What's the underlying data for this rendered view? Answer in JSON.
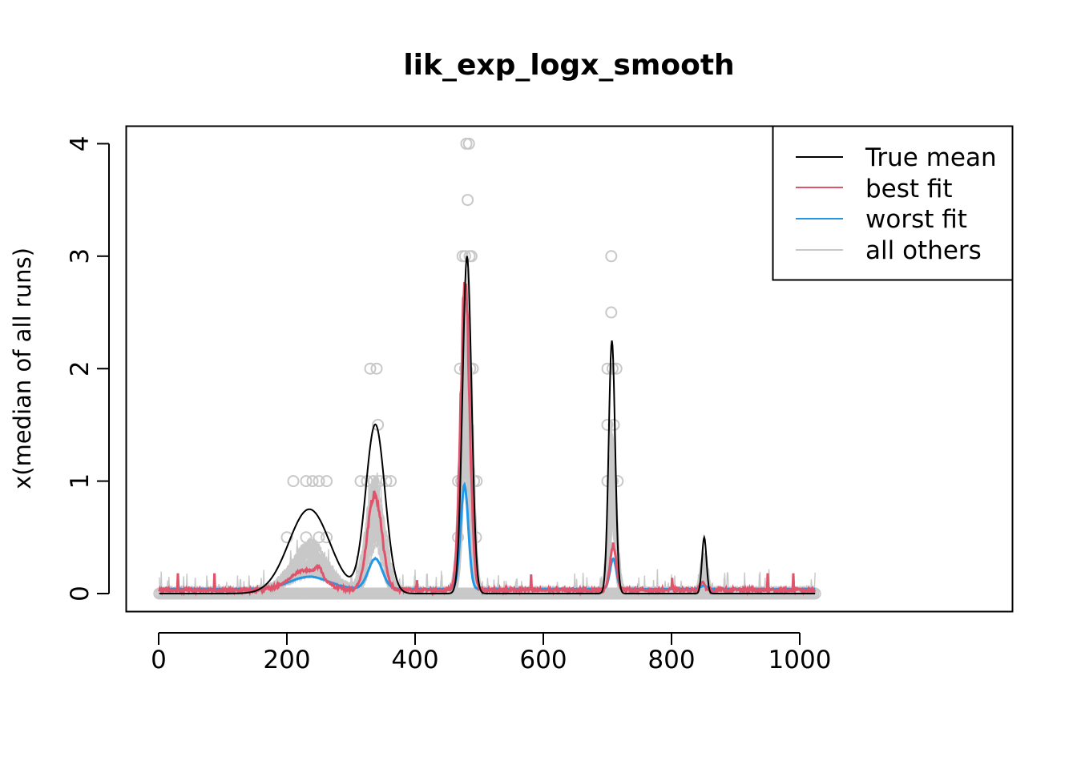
{
  "chart_data": {
    "type": "line",
    "title": "lik_exp_logx_smooth",
    "xlabel": "",
    "ylabel": "x(median of all runs)",
    "xlim": [
      -20,
      1085
    ],
    "ylim": [
      -0.16,
      4.16
    ],
    "xticks": [
      0,
      200,
      400,
      600,
      800,
      1000
    ],
    "yticks": [
      0,
      1,
      2,
      3,
      4
    ],
    "x_tick_labels": [
      "0",
      "200",
      "400",
      "600",
      "800",
      "1000"
    ],
    "y_tick_labels": [
      "0",
      "1",
      "2",
      "3",
      "4"
    ],
    "grid": false,
    "legend_position": "top-right",
    "colors": {
      "true_mean": "#000000",
      "best_fit": "#DF536B",
      "worst_fit": "#2297E6",
      "all_others": "#C8C8C8",
      "points": "#C8C8C8"
    },
    "true_mean": {
      "name": "True mean",
      "baseline": 0,
      "bumps": [
        {
          "center": 235,
          "height": 0.75,
          "width": 32
        },
        {
          "center": 338,
          "height": 1.5,
          "width": 15
        },
        {
          "center": 481,
          "height": 3.0,
          "width": 7
        },
        {
          "center": 707,
          "height": 2.25,
          "width": 5
        },
        {
          "center": 851,
          "height": 0.5,
          "width": 3.5
        }
      ]
    },
    "best_fit": {
      "name": "best fit",
      "baseline": 0.03,
      "bumps": [
        {
          "center": 230,
          "height": 0.18,
          "width": 25
        },
        {
          "center": 250,
          "height": 0.08,
          "width": 5
        },
        {
          "center": 337,
          "height": 0.85,
          "width": 11
        },
        {
          "center": 478,
          "height": 2.72,
          "width": 7
        },
        {
          "center": 709,
          "height": 0.4,
          "width": 5
        },
        {
          "center": 848,
          "height": 0.07,
          "width": 4
        }
      ],
      "spikes": [
        {
          "x": 30,
          "height": 0.18
        },
        {
          "x": 87,
          "height": 0.18
        },
        {
          "x": 403,
          "height": 0.12
        },
        {
          "x": 581,
          "height": 0.17
        },
        {
          "x": 801,
          "height": 0.14
        },
        {
          "x": 950,
          "height": 0.18
        },
        {
          "x": 990,
          "height": 0.18
        }
      ]
    },
    "worst_fit": {
      "name": "worst fit",
      "baseline": 0.04,
      "bumps": [
        {
          "center": 235,
          "height": 0.11,
          "width": 30
        },
        {
          "center": 338,
          "height": 0.27,
          "width": 11
        },
        {
          "center": 477,
          "height": 0.92,
          "width": 6
        },
        {
          "center": 709,
          "height": 0.27,
          "width": 5
        },
        {
          "center": 850,
          "height": 0.03,
          "width": 5
        }
      ]
    },
    "all_others": {
      "name": "all others",
      "count": 40,
      "baseline": 0.02,
      "bumps": [
        {
          "center": 235,
          "height_range": [
            0.12,
            0.45
          ],
          "width": 28
        },
        {
          "center": 338,
          "height_range": [
            0.45,
            0.95
          ],
          "width": 12
        },
        {
          "center": 480,
          "height_range": [
            1.0,
            2.6
          ],
          "width": 7
        },
        {
          "center": 708,
          "height_range": [
            0.6,
            1.45
          ],
          "width": 5
        },
        {
          "center": 851,
          "height_range": [
            0.03,
            0.35
          ],
          "width": 4
        }
      ]
    },
    "points": {
      "description_free": true,
      "values": [
        {
          "x": 230,
          "y": 1
        },
        {
          "x": 240,
          "y": 1
        },
        {
          "x": 250,
          "y": 1
        },
        {
          "x": 210,
          "y": 1
        },
        {
          "x": 262,
          "y": 1
        },
        {
          "x": 200,
          "y": 0.5
        },
        {
          "x": 230,
          "y": 0.5
        },
        {
          "x": 250,
          "y": 0.5
        },
        {
          "x": 262,
          "y": 0.5
        },
        {
          "x": 330,
          "y": 2
        },
        {
          "x": 340,
          "y": 2
        },
        {
          "x": 342,
          "y": 1.5
        },
        {
          "x": 315,
          "y": 1
        },
        {
          "x": 325,
          "y": 1
        },
        {
          "x": 335,
          "y": 1
        },
        {
          "x": 345,
          "y": 1
        },
        {
          "x": 355,
          "y": 1
        },
        {
          "x": 362,
          "y": 1
        },
        {
          "x": 480,
          "y": 4
        },
        {
          "x": 484,
          "y": 4
        },
        {
          "x": 482,
          "y": 3.5
        },
        {
          "x": 474,
          "y": 3
        },
        {
          "x": 478,
          "y": 3
        },
        {
          "x": 485,
          "y": 3
        },
        {
          "x": 488,
          "y": 3
        },
        {
          "x": 470,
          "y": 2
        },
        {
          "x": 478,
          "y": 2
        },
        {
          "x": 486,
          "y": 2
        },
        {
          "x": 490,
          "y": 2
        },
        {
          "x": 467,
          "y": 1
        },
        {
          "x": 472,
          "y": 1
        },
        {
          "x": 492,
          "y": 1
        },
        {
          "x": 496,
          "y": 1
        },
        {
          "x": 467,
          "y": 0.5
        },
        {
          "x": 495,
          "y": 0.5
        },
        {
          "x": 706,
          "y": 3
        },
        {
          "x": 706,
          "y": 2.5
        },
        {
          "x": 700,
          "y": 2
        },
        {
          "x": 708,
          "y": 2
        },
        {
          "x": 714,
          "y": 2
        },
        {
          "x": 700,
          "y": 1.5
        },
        {
          "x": 710,
          "y": 1.5
        },
        {
          "x": 700,
          "y": 1
        },
        {
          "x": 708,
          "y": 1
        },
        {
          "x": 716,
          "y": 1
        }
      ]
    },
    "legend": [
      {
        "label": "True mean",
        "color": "#000000"
      },
      {
        "label": "best fit",
        "color": "#DF536B"
      },
      {
        "label": "worst fit",
        "color": "#2297E6"
      },
      {
        "label": "all others",
        "color": "#C8C8C8"
      }
    ]
  }
}
